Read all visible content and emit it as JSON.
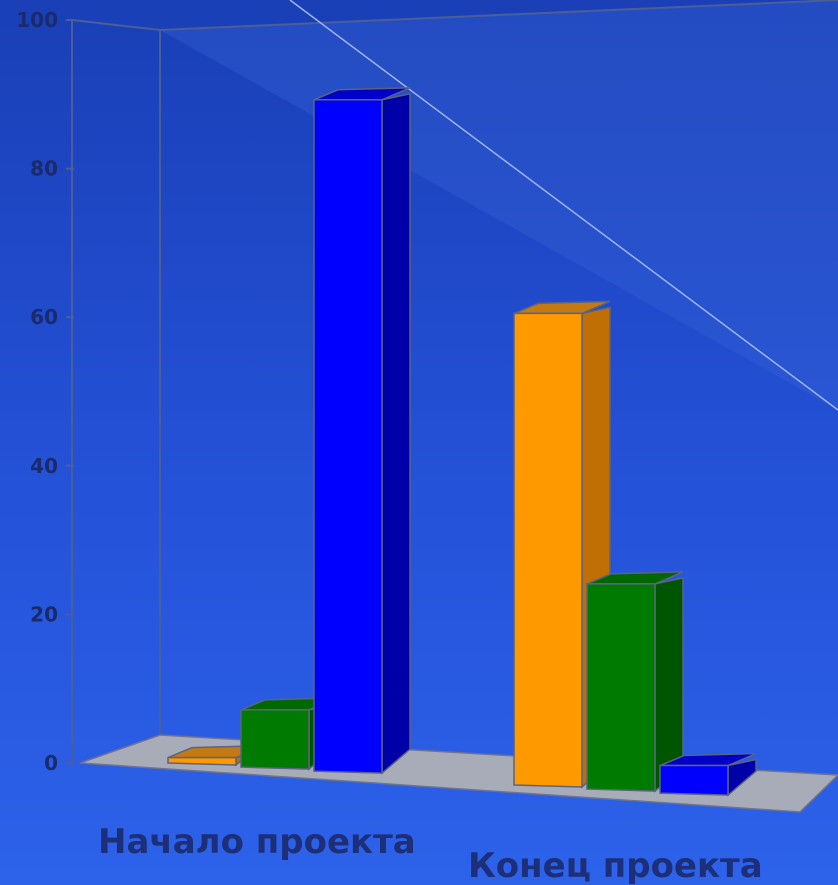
{
  "chart_data": {
    "type": "bar",
    "categories": [
      "Начало проекта",
      "Конец проекта"
    ],
    "series": [
      {
        "values": [
          1,
          64
        ],
        "color": "#ff9900",
        "side_color": "#c06f05",
        "top_color": "#c47a10"
      },
      {
        "values": [
          8,
          28
        ],
        "color": "#007a00",
        "side_color": "#005500",
        "top_color": "#006800"
      },
      {
        "values": [
          91,
          4
        ],
        "color": "#0000ff",
        "side_color": "#0000a8",
        "top_color": "#0000c8"
      }
    ],
    "yticks": [
      "0",
      "20",
      "40",
      "60",
      "80",
      "100"
    ],
    "ylim": [
      0,
      100
    ],
    "grid": false,
    "legend": "none",
    "title": "",
    "xlabel": "",
    "ylabel": "",
    "colors": {
      "floor": "#a8acb8",
      "wall_line": "#4a5f99",
      "wall_fill": "#3a64d8"
    }
  }
}
